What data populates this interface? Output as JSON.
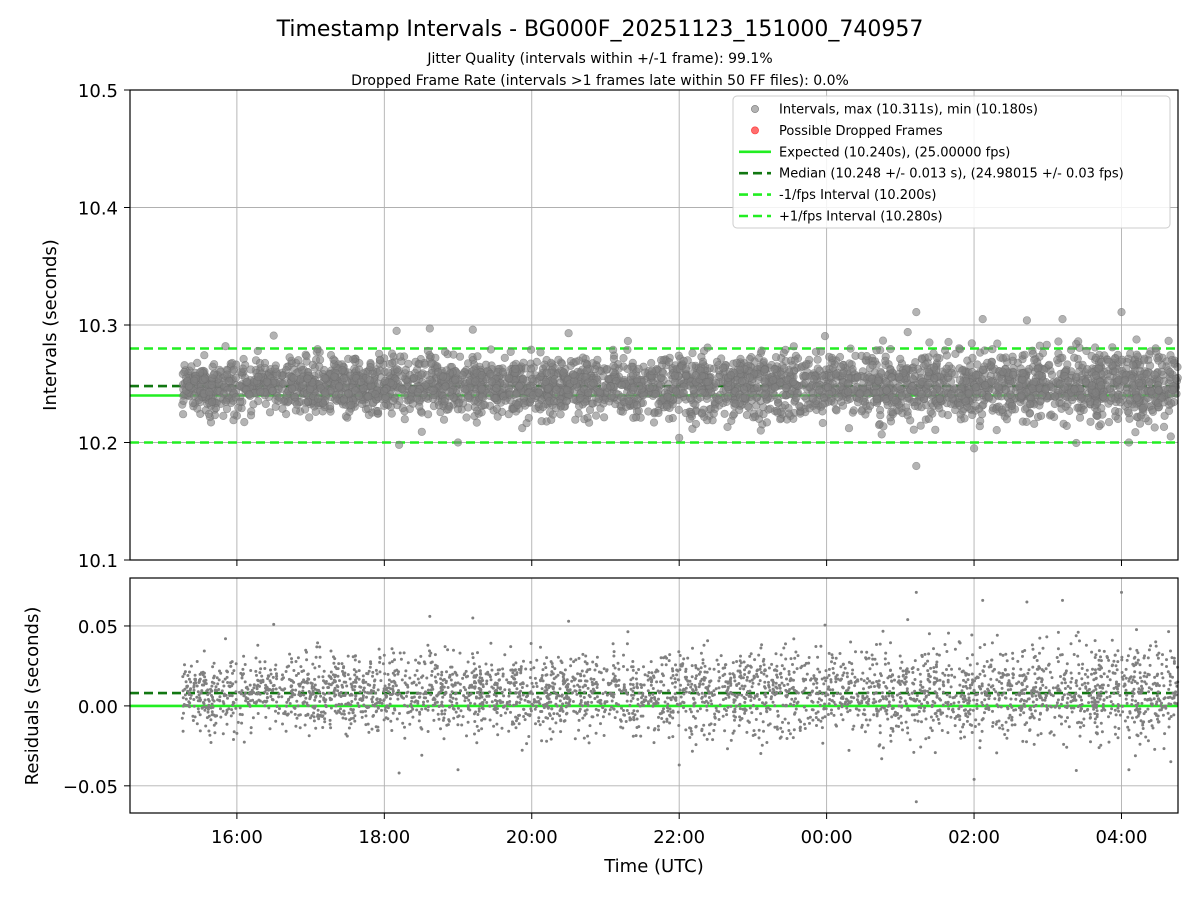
{
  "title": "Timestamp Intervals - BG000F_20251123_151000_740957",
  "subtitle_line1": "Jitter Quality (intervals within +/-1 frame): 99.1%",
  "subtitle_line2": "Dropped Frame Rate (intervals >1 frames late within 50 FF files): 0.0%",
  "colors": {
    "points": "#808080",
    "dropped": "#ff6666",
    "expected": "#22ee22",
    "median": "#117711",
    "bound": "#22ee22"
  },
  "chart_data": [
    {
      "type": "scatter",
      "panel": "intervals",
      "ylabel": "Intervals (seconds)",
      "xlabel": "",
      "xrange": [
        "14:33",
        "04:46"
      ],
      "xlim": [
        "2025-11-23 14:33",
        "2025-11-24 04:46"
      ],
      "ylim": [
        10.1,
        10.5
      ],
      "yticks": [
        "10.1",
        "10.2",
        "10.3",
        "10.4",
        "10.5"
      ],
      "yticks_values": [
        10.1,
        10.2,
        10.3,
        10.4,
        10.5
      ],
      "grid": true,
      "legend_position": "top-right",
      "legend": [
        {
          "label": "Intervals, max (10.311s), min (10.180s)",
          "kind": "marker",
          "color": "#808080"
        },
        {
          "label": "Possible Dropped Frames",
          "kind": "marker",
          "color": "#ff6666"
        },
        {
          "label": "Expected (10.240s), (25.00000 fps)",
          "kind": "solid",
          "color": "#22ee22"
        },
        {
          "label": "Median (10.248 +/- 0.013 s), (24.98015 +/- 0.03 fps)",
          "kind": "dashed",
          "color": "#117711"
        },
        {
          "label": "-1/fps Interval (10.200s)",
          "kind": "dashed",
          "color": "#22ee22"
        },
        {
          "label": "+1/fps Interval (10.280s)",
          "kind": "dashed",
          "color": "#22ee22"
        }
      ],
      "reference_lines": {
        "expected": 10.24,
        "median": 10.248,
        "minus_one_fps": 10.2,
        "plus_one_fps": 10.28
      },
      "series": [
        {
          "name": "Intervals, max (10.311s), min (10.180s)",
          "cloud": {
            "x_start": "15:15",
            "x_end": "04:46",
            "center": 10.248,
            "spread": 0.013,
            "max": 10.311,
            "min": 10.18
          },
          "outliers": [
            {
              "x": "01:13",
              "y": 10.311
            },
            {
              "x": "04:00",
              "y": 10.311
            },
            {
              "x": "02:07",
              "y": 10.305
            },
            {
              "x": "03:12",
              "y": 10.305
            },
            {
              "x": "02:43",
              "y": 10.304
            },
            {
              "x": "16:30",
              "y": 10.291
            },
            {
              "x": "18:10",
              "y": 10.295
            },
            {
              "x": "18:37",
              "y": 10.297
            },
            {
              "x": "19:12",
              "y": 10.296
            },
            {
              "x": "20:30",
              "y": 10.293
            },
            {
              "x": "19:00",
              "y": 10.2
            },
            {
              "x": "18:12",
              "y": 10.198
            },
            {
              "x": "22:00",
              "y": 10.204
            },
            {
              "x": "02:00",
              "y": 10.195
            },
            {
              "x": "04:06",
              "y": 10.2
            },
            {
              "x": "01:13",
              "y": 10.18
            }
          ]
        },
        {
          "name": "Possible Dropped Frames",
          "points": []
        }
      ]
    },
    {
      "type": "scatter",
      "panel": "residuals",
      "ylabel": "Residuals (seconds)",
      "xlabel": "Time (UTC)",
      "xrange": [
        "14:33",
        "04:46"
      ],
      "xlim": [
        "2025-11-23 14:33",
        "2025-11-24 04:46"
      ],
      "ylim": [
        -0.067,
        0.08
      ],
      "yticks": [
        "−0.05",
        "0.00",
        "0.05"
      ],
      "yticks_values": [
        -0.05,
        0.0,
        0.05
      ],
      "xticks": [
        "16:00",
        "18:00",
        "20:00",
        "22:00",
        "00:00",
        "02:00",
        "04:00"
      ],
      "grid": true,
      "reference_lines": {
        "zero": 0.0,
        "median_offset": 0.008
      },
      "series": [
        {
          "name": "Residuals",
          "cloud": {
            "x_start": "15:15",
            "x_end": "04:46",
            "center": 0.008,
            "spread": 0.013,
            "max": 0.071,
            "min": -0.06
          },
          "outliers": [
            {
              "x": "01:13",
              "y": 0.071
            },
            {
              "x": "04:00",
              "y": 0.071
            },
            {
              "x": "02:07",
              "y": 0.066
            },
            {
              "x": "03:12",
              "y": 0.066
            },
            {
              "x": "02:43",
              "y": 0.065
            },
            {
              "x": "18:37",
              "y": 0.056
            },
            {
              "x": "20:30",
              "y": 0.053
            },
            {
              "x": "19:12",
              "y": 0.055
            },
            {
              "x": "16:30",
              "y": 0.051
            },
            {
              "x": "18:12",
              "y": -0.042
            },
            {
              "x": "19:00",
              "y": -0.04
            },
            {
              "x": "22:00",
              "y": -0.037
            },
            {
              "x": "02:00",
              "y": -0.046
            },
            {
              "x": "04:06",
              "y": -0.04
            },
            {
              "x": "01:13",
              "y": -0.06
            }
          ]
        }
      ]
    }
  ]
}
